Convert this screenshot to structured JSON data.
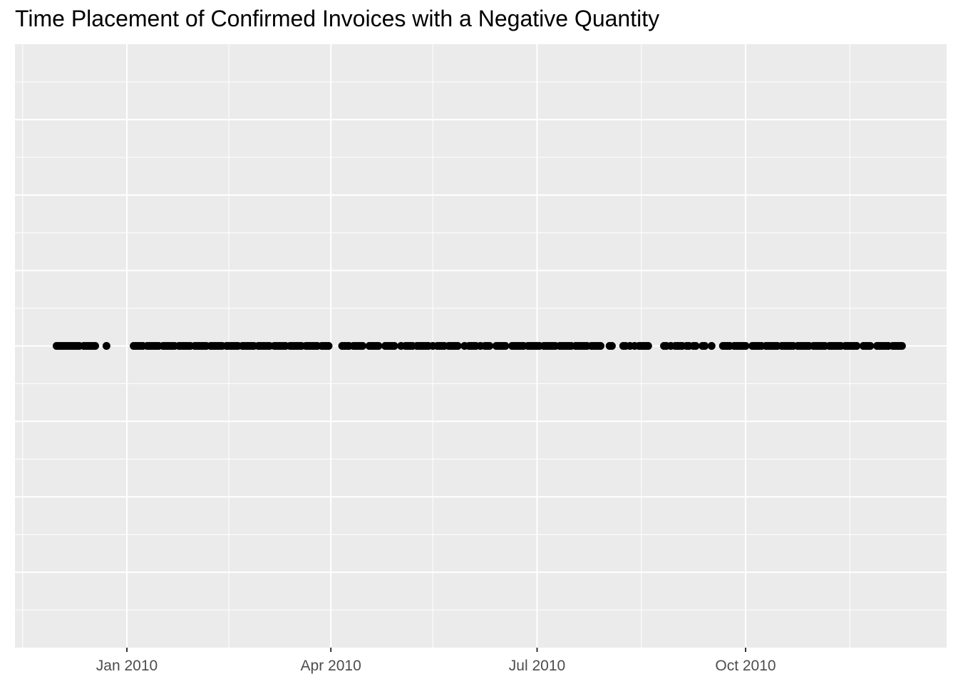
{
  "chart_data": {
    "type": "scatter",
    "title": "Time Placement of Confirmed Invoices with a Negative Quantity",
    "xlabel": "",
    "ylabel": "",
    "x_axis": {
      "kind": "date",
      "range": [
        "2009-11-08",
        "2010-12-21"
      ],
      "ticks": [
        {
          "date": "2010-01-01",
          "label": "Jan 2010"
        },
        {
          "date": "2010-04-01",
          "label": "Apr 2010"
        },
        {
          "date": "2010-07-01",
          "label": "Jul 2010"
        },
        {
          "date": "2010-10-01",
          "label": "Oct 2010"
        }
      ],
      "minor_ticks": [
        "2009-11-16",
        "2010-02-15",
        "2010-05-16",
        "2010-08-16",
        "2010-11-16"
      ]
    },
    "y_axis": {
      "tick_labels": "none",
      "gridlines": 7
    },
    "grid": true,
    "legend": "none",
    "colors": {
      "panel": "#ebebeb",
      "grid": "#ffffff",
      "point": "#000000",
      "tick_text": "#4d4d4d"
    },
    "series": [
      {
        "y": 0,
        "x": [
          "2009-12-01",
          "2009-12-02",
          "2009-12-03",
          "2009-12-04",
          "2009-12-05",
          "2009-12-06",
          "2009-12-07",
          "2009-12-08",
          "2009-12-09",
          "2009-12-10",
          "2009-12-11",
          "2009-12-13",
          "2009-12-14",
          "2009-12-15",
          "2009-12-16",
          "2009-12-17",
          "2009-12-18",
          "2009-12-23",
          "2010-01-04",
          "2010-01-05",
          "2010-01-06",
          "2010-01-07",
          "2010-01-08",
          "2010-01-10",
          "2010-01-11",
          "2010-01-12",
          "2010-01-13",
          "2010-01-14",
          "2010-01-15",
          "2010-01-17",
          "2010-01-18",
          "2010-01-19",
          "2010-01-20",
          "2010-01-21",
          "2010-01-22",
          "2010-01-24",
          "2010-01-25",
          "2010-01-26",
          "2010-01-27",
          "2010-01-28",
          "2010-01-29",
          "2010-01-31",
          "2010-02-01",
          "2010-02-02",
          "2010-02-03",
          "2010-02-04",
          "2010-02-05",
          "2010-02-07",
          "2010-02-08",
          "2010-02-09",
          "2010-02-10",
          "2010-02-11",
          "2010-02-12",
          "2010-02-14",
          "2010-02-15",
          "2010-02-16",
          "2010-02-17",
          "2010-02-18",
          "2010-02-19",
          "2010-02-21",
          "2010-02-22",
          "2010-02-23",
          "2010-02-24",
          "2010-02-25",
          "2010-02-26",
          "2010-02-28",
          "2010-03-01",
          "2010-03-02",
          "2010-03-03",
          "2010-03-04",
          "2010-03-05",
          "2010-03-07",
          "2010-03-08",
          "2010-03-09",
          "2010-03-10",
          "2010-03-11",
          "2010-03-12",
          "2010-03-14",
          "2010-03-15",
          "2010-03-16",
          "2010-03-17",
          "2010-03-18",
          "2010-03-19",
          "2010-03-21",
          "2010-03-22",
          "2010-03-23",
          "2010-03-24",
          "2010-03-25",
          "2010-03-26",
          "2010-03-28",
          "2010-03-29",
          "2010-03-30",
          "2010-03-31",
          "2010-04-06",
          "2010-04-07",
          "2010-04-08",
          "2010-04-09",
          "2010-04-11",
          "2010-04-12",
          "2010-04-13",
          "2010-04-14",
          "2010-04-15",
          "2010-04-18",
          "2010-04-19",
          "2010-04-20",
          "2010-04-21",
          "2010-04-22",
          "2010-04-25",
          "2010-04-26",
          "2010-04-27",
          "2010-04-28",
          "2010-04-29",
          "2010-05-02",
          "2010-05-04",
          "2010-05-05",
          "2010-05-06",
          "2010-05-07",
          "2010-05-09",
          "2010-05-10",
          "2010-05-11",
          "2010-05-12",
          "2010-05-13",
          "2010-05-14",
          "2010-05-16",
          "2010-05-18",
          "2010-05-19",
          "2010-05-20",
          "2010-05-21",
          "2010-05-23",
          "2010-05-24",
          "2010-05-25",
          "2010-05-26",
          "2010-05-27",
          "2010-05-30",
          "2010-06-01",
          "2010-06-02",
          "2010-06-03",
          "2010-06-04",
          "2010-06-06",
          "2010-06-08",
          "2010-06-09",
          "2010-06-10",
          "2010-06-13",
          "2010-06-14",
          "2010-06-15",
          "2010-06-16",
          "2010-06-17",
          "2010-06-20",
          "2010-06-21",
          "2010-06-22",
          "2010-06-23",
          "2010-06-24",
          "2010-06-25",
          "2010-06-27",
          "2010-06-28",
          "2010-06-29",
          "2010-06-30",
          "2010-07-01",
          "2010-07-02",
          "2010-07-04",
          "2010-07-05",
          "2010-07-06",
          "2010-07-07",
          "2010-07-08",
          "2010-07-09",
          "2010-07-11",
          "2010-07-12",
          "2010-07-13",
          "2010-07-14",
          "2010-07-15",
          "2010-07-16",
          "2010-07-18",
          "2010-07-19",
          "2010-07-20",
          "2010-07-21",
          "2010-07-22",
          "2010-07-23",
          "2010-07-25",
          "2010-07-26",
          "2010-07-27",
          "2010-07-28",
          "2010-07-29",
          "2010-08-02",
          "2010-08-03",
          "2010-08-08",
          "2010-08-09",
          "2010-08-11",
          "2010-08-13",
          "2010-08-15",
          "2010-08-16",
          "2010-08-17",
          "2010-08-18",
          "2010-08-19",
          "2010-08-26",
          "2010-08-27",
          "2010-08-29",
          "2010-08-31",
          "2010-09-01",
          "2010-09-02",
          "2010-09-03",
          "2010-09-05",
          "2010-09-06",
          "2010-09-08",
          "2010-09-09",
          "2010-09-12",
          "2010-09-13",
          "2010-09-16",
          "2010-09-21",
          "2010-09-22",
          "2010-09-23",
          "2010-09-24",
          "2010-09-26",
          "2010-09-27",
          "2010-09-28",
          "2010-09-29",
          "2010-09-30",
          "2010-10-01",
          "2010-10-04",
          "2010-10-05",
          "2010-10-06",
          "2010-10-07",
          "2010-10-08",
          "2010-10-10",
          "2010-10-11",
          "2010-10-12",
          "2010-10-13",
          "2010-10-14",
          "2010-10-15",
          "2010-10-17",
          "2010-10-18",
          "2010-10-19",
          "2010-10-20",
          "2010-10-21",
          "2010-10-22",
          "2010-10-24",
          "2010-10-25",
          "2010-10-26",
          "2010-10-27",
          "2010-10-28",
          "2010-10-29",
          "2010-10-31",
          "2010-11-01",
          "2010-11-02",
          "2010-11-03",
          "2010-11-04",
          "2010-11-05",
          "2010-11-07",
          "2010-11-08",
          "2010-11-09",
          "2010-11-10",
          "2010-11-11",
          "2010-11-12",
          "2010-11-14",
          "2010-11-15",
          "2010-11-16",
          "2010-11-17",
          "2010-11-18",
          "2010-11-19",
          "2010-11-22",
          "2010-11-23",
          "2010-11-24",
          "2010-11-25",
          "2010-11-28",
          "2010-11-29",
          "2010-11-30",
          "2010-12-01",
          "2010-12-02",
          "2010-12-03",
          "2010-12-05",
          "2010-12-06",
          "2010-12-07",
          "2010-12-08",
          "2010-12-09"
        ]
      }
    ]
  }
}
